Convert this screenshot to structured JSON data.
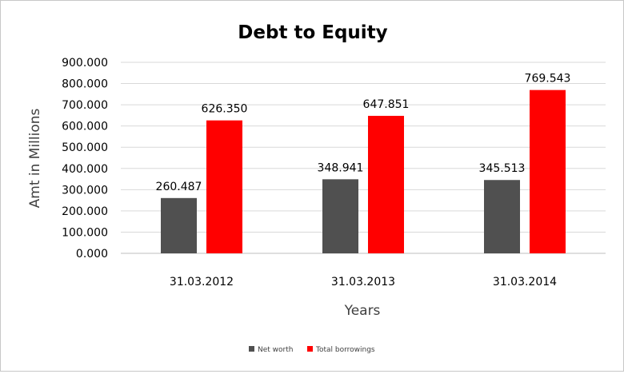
{
  "chart_data": {
    "type": "bar",
    "title": "Debt to Equity",
    "xlabel": "Years",
    "ylabel": "Amt in Millions",
    "categories": [
      "31.03.2012",
      "31.03.2013",
      "31.03.2014"
    ],
    "series": [
      {
        "name": "Net worth",
        "color": "#505050",
        "values": [
          260.487,
          348.941,
          345.513
        ],
        "labels": [
          "260.487",
          "348.941",
          "345.513"
        ]
      },
      {
        "name": "Total borrowings",
        "color": "#ff0000",
        "values": [
          626.35,
          647.851,
          769.543
        ],
        "labels": [
          "626.350",
          "647.851",
          "769.543"
        ]
      }
    ],
    "ylim": [
      0,
      900
    ],
    "yticks": [
      0,
      100,
      200,
      300,
      400,
      500,
      600,
      700,
      800,
      900
    ],
    "ytick_labels": [
      "0.000",
      "100.000",
      "200.000",
      "300.000",
      "400.000",
      "500.000",
      "600.000",
      "700.000",
      "800.000",
      "900.000"
    ],
    "grid": true,
    "legend": "bottom-center"
  }
}
